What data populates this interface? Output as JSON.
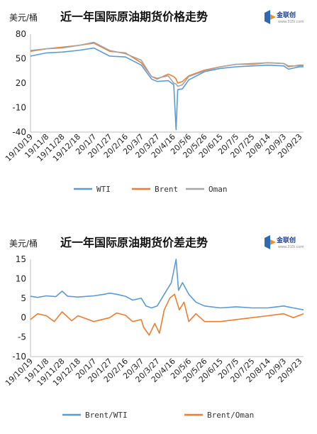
{
  "logo": {
    "text": "金联创",
    "sub": "www.315i.com"
  },
  "chart_data": [
    {
      "type": "line",
      "title": "近一年国际原油期货价格走势",
      "ylabel": "美元/桶",
      "ylim": [
        -40,
        80
      ],
      "yticks": [
        -40,
        -10,
        20,
        50,
        80
      ],
      "x_labels": [
        "19/10/19",
        "19/11/8",
        "19/11/28",
        "19/12/18",
        "20/1/7",
        "20/1/27",
        "20/2/16",
        "20/3/7",
        "20/3/27",
        "20/4/16",
        "20/5/6",
        "20/5/26",
        "20/6/15",
        "20/7/5",
        "20/7/25",
        "20/8/14",
        "20/9/3",
        "20/9/23"
      ],
      "x_start": "2019-10-19",
      "x_end": "2020-09-28",
      "grid": false,
      "legend_position": "bottom",
      "series": [
        {
          "name": "WTI",
          "color": "#5b9bd5",
          "points": [
            [
              "2019-10-19",
              53
            ],
            [
              "2019-11-08",
              57
            ],
            [
              "2019-11-28",
              58
            ],
            [
              "2019-12-18",
              60
            ],
            [
              "2020-01-07",
              63
            ],
            [
              "2020-01-27",
              53
            ],
            [
              "2020-02-16",
              52
            ],
            [
              "2020-03-07",
              42
            ],
            [
              "2020-03-20",
              25
            ],
            [
              "2020-03-27",
              22
            ],
            [
              "2020-04-10",
              23
            ],
            [
              "2020-04-17",
              18
            ],
            [
              "2020-04-20",
              -37
            ],
            [
              "2020-04-22",
              12
            ],
            [
              "2020-04-28",
              13
            ],
            [
              "2020-05-06",
              24
            ],
            [
              "2020-05-26",
              34
            ],
            [
              "2020-06-15",
              38
            ],
            [
              "2020-07-05",
              40
            ],
            [
              "2020-07-25",
              41
            ],
            [
              "2020-08-14",
              42
            ],
            [
              "2020-09-03",
              41
            ],
            [
              "2020-09-09",
              37
            ],
            [
              "2020-09-23",
              40
            ],
            [
              "2020-09-28",
              40
            ]
          ]
        },
        {
          "name": "Brent",
          "color": "#ed7d31",
          "points": [
            [
              "2019-10-19",
              59
            ],
            [
              "2019-11-08",
              62
            ],
            [
              "2019-11-28",
              64
            ],
            [
              "2019-12-18",
              66
            ],
            [
              "2020-01-07",
              69
            ],
            [
              "2020-01-27",
              59
            ],
            [
              "2020-02-16",
              57
            ],
            [
              "2020-03-07",
              45
            ],
            [
              "2020-03-20",
              28
            ],
            [
              "2020-03-27",
              25
            ],
            [
              "2020-04-10",
              31
            ],
            [
              "2020-04-17",
              28
            ],
            [
              "2020-04-20",
              25
            ],
            [
              "2020-04-22",
              20
            ],
            [
              "2020-04-28",
              22
            ],
            [
              "2020-05-06",
              29
            ],
            [
              "2020-05-26",
              36
            ],
            [
              "2020-06-15",
              40
            ],
            [
              "2020-07-05",
              43
            ],
            [
              "2020-07-25",
              43
            ],
            [
              "2020-08-14",
              45
            ],
            [
              "2020-09-03",
              44
            ],
            [
              "2020-09-09",
              40
            ],
            [
              "2020-09-23",
              42
            ],
            [
              "2020-09-28",
              42
            ]
          ]
        },
        {
          "name": "Oman",
          "color": "#a5a5a5",
          "points": [
            [
              "2019-10-19",
              60
            ],
            [
              "2019-11-08",
              62
            ],
            [
              "2019-11-28",
              63
            ],
            [
              "2019-12-18",
              66
            ],
            [
              "2020-01-07",
              70
            ],
            [
              "2020-01-27",
              60
            ],
            [
              "2020-02-16",
              56
            ],
            [
              "2020-03-07",
              48
            ],
            [
              "2020-03-20",
              28
            ],
            [
              "2020-03-27",
              26
            ],
            [
              "2020-04-10",
              29
            ],
            [
              "2020-04-17",
              20
            ],
            [
              "2020-04-20",
              19
            ],
            [
              "2020-04-22",
              16
            ],
            [
              "2020-04-28",
              18
            ],
            [
              "2020-05-06",
              28
            ],
            [
              "2020-05-26",
              35
            ],
            [
              "2020-06-15",
              40
            ],
            [
              "2020-07-05",
              43
            ],
            [
              "2020-07-25",
              44
            ],
            [
              "2020-08-14",
              45
            ],
            [
              "2020-09-03",
              44
            ],
            [
              "2020-09-09",
              41
            ],
            [
              "2020-09-23",
              41
            ],
            [
              "2020-09-28",
              41
            ]
          ]
        }
      ]
    },
    {
      "type": "line",
      "title": "近一年国际原油期货价差走势",
      "ylabel": "美元/桶",
      "ylim": [
        -10,
        15
      ],
      "yticks": [
        -10,
        -5,
        0,
        5,
        10,
        15
      ],
      "x_labels": [
        "19/10/19",
        "19/11/8",
        "19/11/28",
        "19/12/18",
        "20/1/7",
        "20/1/27",
        "20/2/16",
        "20/3/7",
        "20/3/27",
        "20/4/16",
        "20/5/6",
        "20/5/26",
        "20/6/15",
        "20/7/5",
        "20/7/25",
        "20/8/14",
        "20/9/3",
        "20/9/23"
      ],
      "x_start": "2019-10-19",
      "x_end": "2020-09-28",
      "grid": false,
      "legend_position": "bottom",
      "series": [
        {
          "name": "Brent/WTI",
          "color": "#5b9bd5",
          "points": [
            [
              "2019-10-19",
              5.5
            ],
            [
              "2019-10-28",
              5.2
            ],
            [
              "2019-11-08",
              5.6
            ],
            [
              "2019-11-20",
              5.4
            ],
            [
              "2019-11-28",
              6.8
            ],
            [
              "2019-12-05",
              5.5
            ],
            [
              "2019-12-18",
              5.3
            ],
            [
              "2020-01-07",
              5.6
            ],
            [
              "2020-01-20",
              6.0
            ],
            [
              "2020-01-27",
              6.3
            ],
            [
              "2020-02-05",
              6.0
            ],
            [
              "2020-02-16",
              5.5
            ],
            [
              "2020-02-25",
              4.5
            ],
            [
              "2020-03-07",
              5.0
            ],
            [
              "2020-03-13",
              3.0
            ],
            [
              "2020-03-20",
              2.5
            ],
            [
              "2020-03-27",
              3.0
            ],
            [
              "2020-04-05",
              6.0
            ],
            [
              "2020-04-14",
              9.0
            ],
            [
              "2020-04-17",
              12.0
            ],
            [
              "2020-04-20",
              15.0
            ],
            [
              "2020-04-23",
              7.0
            ],
            [
              "2020-04-28",
              9.0
            ],
            [
              "2020-05-06",
              6.0
            ],
            [
              "2020-05-15",
              4.0
            ],
            [
              "2020-05-26",
              3.0
            ],
            [
              "2020-06-15",
              2.5
            ],
            [
              "2020-07-05",
              2.8
            ],
            [
              "2020-07-25",
              2.5
            ],
            [
              "2020-08-14",
              2.5
            ],
            [
              "2020-09-03",
              3.0
            ],
            [
              "2020-09-15",
              2.5
            ],
            [
              "2020-09-28",
              2.0
            ]
          ]
        },
        {
          "name": "Brent/Oman",
          "color": "#ed7d31",
          "points": [
            [
              "2019-10-19",
              -0.5
            ],
            [
              "2019-10-28",
              1.0
            ],
            [
              "2019-11-08",
              0.5
            ],
            [
              "2019-11-18",
              -1.0
            ],
            [
              "2019-11-28",
              1.5
            ],
            [
              "2019-12-10",
              -0.8
            ],
            [
              "2019-12-18",
              0.5
            ],
            [
              "2020-01-07",
              -1.0
            ],
            [
              "2020-01-27",
              0.0
            ],
            [
              "2020-02-05",
              1.2
            ],
            [
              "2020-02-16",
              0.6
            ],
            [
              "2020-02-25",
              -1.0
            ],
            [
              "2020-03-07",
              -0.5
            ],
            [
              "2020-03-10",
              -2.5
            ],
            [
              "2020-03-17",
              -4.5
            ],
            [
              "2020-03-24",
              -1.5
            ],
            [
              "2020-03-30",
              -4.0
            ],
            [
              "2020-04-05",
              2.0
            ],
            [
              "2020-04-12",
              5.0
            ],
            [
              "2020-04-18",
              6.0
            ],
            [
              "2020-04-24",
              2.0
            ],
            [
              "2020-04-30",
              4.0
            ],
            [
              "2020-05-06",
              -1.0
            ],
            [
              "2020-05-15",
              1.0
            ],
            [
              "2020-05-26",
              -1.0
            ],
            [
              "2020-06-15",
              -1.0
            ],
            [
              "2020-07-05",
              -0.5
            ],
            [
              "2020-07-25",
              0.0
            ],
            [
              "2020-08-14",
              0.5
            ],
            [
              "2020-09-03",
              1.0
            ],
            [
              "2020-09-15",
              0.0
            ],
            [
              "2020-09-28",
              1.0
            ]
          ]
        }
      ]
    }
  ]
}
